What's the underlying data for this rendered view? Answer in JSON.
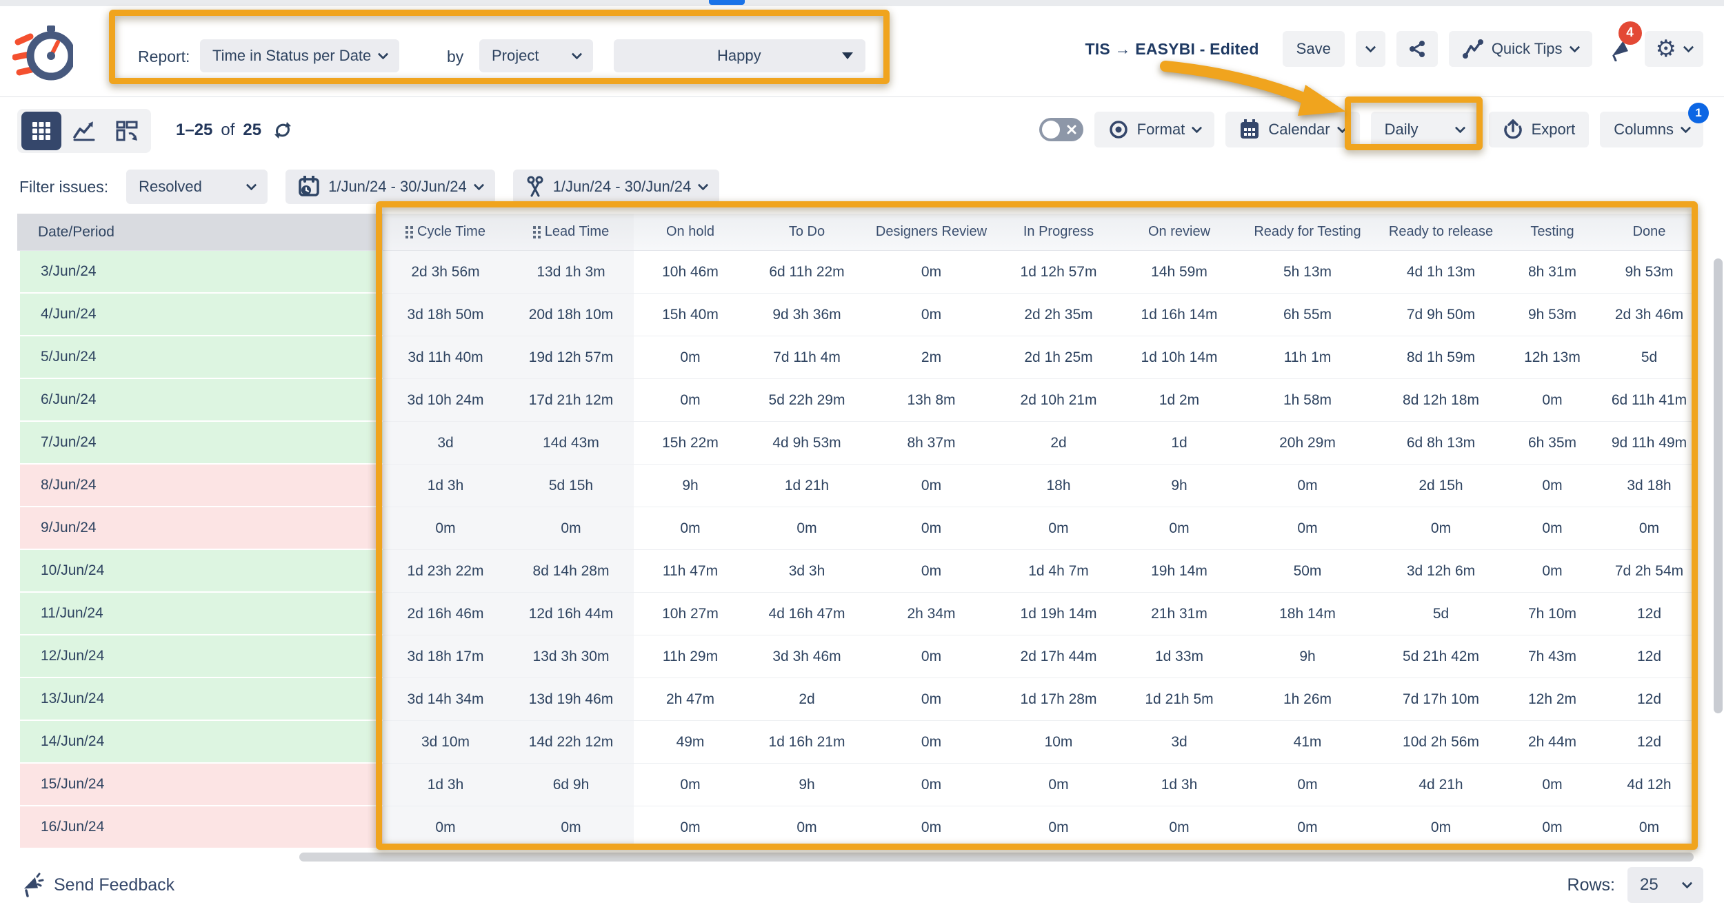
{
  "header": {
    "report_label": "Report:",
    "report_value": "Time in Status per Date",
    "by_label": "by",
    "group_value": "Project",
    "project_value": "Happy",
    "title_prefix": "TIS → EASYBI - ",
    "title_bold": "Edited",
    "save_label": "Save",
    "quick_tips_label": "Quick Tips",
    "notification_count": "4"
  },
  "toolbar": {
    "pagination_range": "1–25",
    "pagination_of": "of",
    "pagination_total": "25",
    "format_label": "Format",
    "calendar_label": "Calendar",
    "period_value": "Daily",
    "export_label": "Export",
    "columns_label": "Columns",
    "columns_badge": "1"
  },
  "filters": {
    "label": "Filter issues:",
    "status_value": "Resolved",
    "date_range": "1/Jun/24 - 30/Jun/24",
    "sprint_range": "1/Jun/24 - 30/Jun/24"
  },
  "table": {
    "date_header": "Date/Period",
    "columns": [
      {
        "label": "Cycle Time",
        "drag": true,
        "gray": true
      },
      {
        "label": "Lead Time",
        "drag": true,
        "gray": true
      },
      {
        "label": "On hold",
        "drag": false,
        "gray": false
      },
      {
        "label": "To Do",
        "drag": false,
        "gray": false
      },
      {
        "label": "Designers Review",
        "drag": false,
        "gray": false
      },
      {
        "label": "In Progress",
        "drag": false,
        "gray": false
      },
      {
        "label": "On review",
        "drag": false,
        "gray": false
      },
      {
        "label": "Ready for Testing",
        "drag": false,
        "gray": false
      },
      {
        "label": "Ready to release",
        "drag": false,
        "gray": false
      },
      {
        "label": "Testing",
        "drag": false,
        "gray": false
      },
      {
        "label": "Done",
        "drag": false,
        "gray": false
      }
    ],
    "rows": [
      {
        "date": "3/Jun/24",
        "day_type": "weekday",
        "values": [
          "2d 3h 56m",
          "13d 1h 3m",
          "10h 46m",
          "6d 11h 22m",
          "0m",
          "1d 12h 57m",
          "14h 59m",
          "5h 13m",
          "4d 1h 13m",
          "8h 31m",
          "9h 53m"
        ]
      },
      {
        "date": "4/Jun/24",
        "day_type": "weekday",
        "values": [
          "3d 18h 50m",
          "20d 18h 10m",
          "15h 40m",
          "9d 3h 36m",
          "0m",
          "2d 2h 35m",
          "1d 16h 14m",
          "6h 55m",
          "7d 9h 50m",
          "9h 53m",
          "2d 3h 46m"
        ]
      },
      {
        "date": "5/Jun/24",
        "day_type": "weekday",
        "values": [
          "3d 11h 40m",
          "19d 12h 57m",
          "0m",
          "7d 11h 4m",
          "2m",
          "2d 1h 25m",
          "1d 10h 14m",
          "11h 1m",
          "8d 1h 59m",
          "12h 13m",
          "5d"
        ]
      },
      {
        "date": "6/Jun/24",
        "day_type": "weekday",
        "values": [
          "3d 10h 24m",
          "17d 21h 12m",
          "0m",
          "5d 22h 29m",
          "13h 8m",
          "2d 10h 21m",
          "1d 2m",
          "1h 58m",
          "8d 12h 18m",
          "0m",
          "6d 11h 41m"
        ]
      },
      {
        "date": "7/Jun/24",
        "day_type": "weekday",
        "values": [
          "3d",
          "14d 43m",
          "15h 22m",
          "4d 9h 53m",
          "8h 37m",
          "2d",
          "1d",
          "20h 29m",
          "6d 8h 13m",
          "6h 35m",
          "9d 11h 49m"
        ]
      },
      {
        "date": "8/Jun/24",
        "day_type": "weekend",
        "values": [
          "1d 3h",
          "5d 15h",
          "9h",
          "1d 21h",
          "0m",
          "18h",
          "9h",
          "0m",
          "2d 15h",
          "0m",
          "3d 18h"
        ]
      },
      {
        "date": "9/Jun/24",
        "day_type": "weekend",
        "values": [
          "0m",
          "0m",
          "0m",
          "0m",
          "0m",
          "0m",
          "0m",
          "0m",
          "0m",
          "0m",
          "0m"
        ]
      },
      {
        "date": "10/Jun/24",
        "day_type": "weekday",
        "values": [
          "1d 23h 22m",
          "8d 14h 28m",
          "11h 47m",
          "3d 3h",
          "0m",
          "1d 4h 7m",
          "19h 14m",
          "50m",
          "3d 12h 6m",
          "0m",
          "7d 2h 54m"
        ]
      },
      {
        "date": "11/Jun/24",
        "day_type": "weekday",
        "values": [
          "2d 16h 46m",
          "12d 16h 44m",
          "10h 27m",
          "4d 16h 47m",
          "2h 34m",
          "1d 19h 14m",
          "21h 31m",
          "18h 14m",
          "5d",
          "7h 10m",
          "12d"
        ]
      },
      {
        "date": "12/Jun/24",
        "day_type": "weekday",
        "values": [
          "3d 18h 17m",
          "13d 3h 30m",
          "11h 29m",
          "3d 3h 46m",
          "0m",
          "2d 17h 44m",
          "1d 33m",
          "9h",
          "5d 21h 42m",
          "7h 43m",
          "12d"
        ]
      },
      {
        "date": "13/Jun/24",
        "day_type": "weekday",
        "values": [
          "3d 14h 34m",
          "13d 19h 46m",
          "2h 47m",
          "2d",
          "0m",
          "1d 17h 28m",
          "1d 21h 5m",
          "1h 26m",
          "7d 17h 10m",
          "12h 2m",
          "12d"
        ]
      },
      {
        "date": "14/Jun/24",
        "day_type": "weekday",
        "values": [
          "3d 10m",
          "14d 22h 12m",
          "49m",
          "1d 16h 21m",
          "0m",
          "10m",
          "3d",
          "41m",
          "10d 2h 56m",
          "2h 44m",
          "12d"
        ]
      },
      {
        "date": "15/Jun/24",
        "day_type": "weekend",
        "values": [
          "1d 3h",
          "6d 9h",
          "0m",
          "9h",
          "0m",
          "0m",
          "1d 3h",
          "0m",
          "4d 21h",
          "0m",
          "4d 12h"
        ]
      },
      {
        "date": "16/Jun/24",
        "day_type": "weekend",
        "values": [
          "0m",
          "0m",
          "0m",
          "0m",
          "0m",
          "0m",
          "0m",
          "0m",
          "0m",
          "0m",
          "0m"
        ]
      }
    ]
  },
  "footer": {
    "feedback_label": "Send Feedback",
    "rows_label": "Rows:",
    "rows_value": "25"
  },
  "colors": {
    "annotation_orange": "#F0A41E",
    "weekday_green": "#ddf5e1",
    "weekend_pink": "#fce4e4",
    "badge_red": "#E34935",
    "badge_blue": "#0C66E4",
    "active_view_navy": "#35476b"
  }
}
